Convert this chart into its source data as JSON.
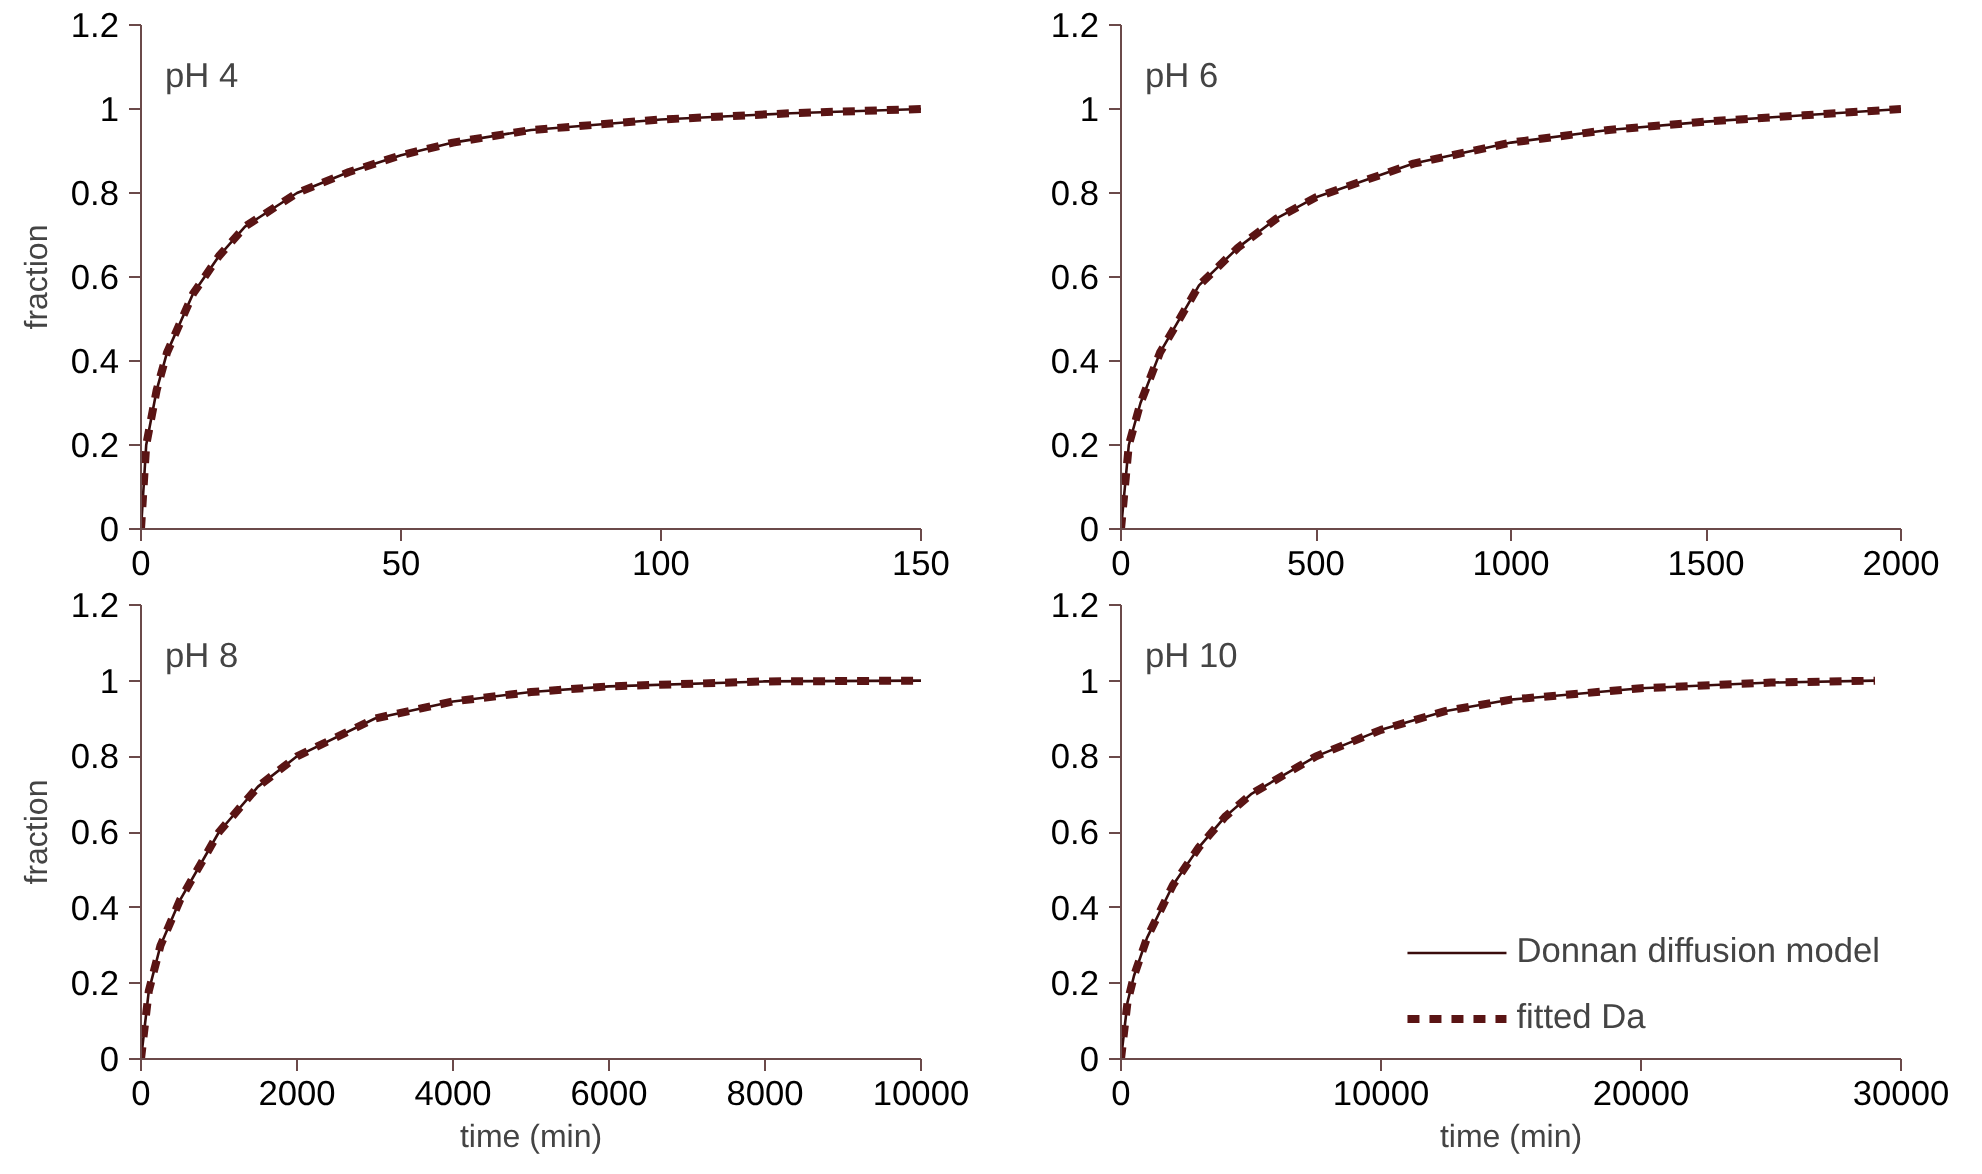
{
  "chart_data": [
    {
      "type": "line",
      "annotations": [
        "pH 4"
      ],
      "ylabel": "fraction",
      "xlim": [
        0,
        150
      ],
      "xticks": [
        0,
        50,
        100,
        150
      ],
      "ylim": [
        0,
        1.2
      ],
      "yticks": [
        0,
        0.2,
        0.4,
        0.6,
        0.8,
        1,
        1.2
      ],
      "grid": false,
      "legend": false,
      "x": [
        0,
        1,
        3,
        5,
        10,
        15,
        20,
        30,
        40,
        50,
        60,
        75,
        100,
        125,
        150
      ],
      "series": [
        {
          "color": "#3a0c0c",
          "line_style": "solid",
          "values": [
            0,
            0.2,
            0.33,
            0.42,
            0.56,
            0.65,
            0.72,
            0.8,
            0.85,
            0.89,
            0.92,
            0.95,
            0.975,
            0.99,
            1.0
          ]
        },
        {
          "color": "#5a1414",
          "line_style": "dashed",
          "values": [
            0,
            0.2,
            0.33,
            0.42,
            0.56,
            0.65,
            0.72,
            0.8,
            0.85,
            0.89,
            0.92,
            0.95,
            0.975,
            0.99,
            1.0
          ]
        }
      ]
    },
    {
      "type": "line",
      "annotations": [
        "pH 6"
      ],
      "xlim": [
        0,
        2000
      ],
      "xticks": [
        0,
        500,
        1000,
        1500,
        2000
      ],
      "ylim": [
        0,
        1.2
      ],
      "yticks": [
        0,
        0.2,
        0.4,
        0.6,
        0.8,
        1,
        1.2
      ],
      "grid": false,
      "legend": false,
      "x": [
        0,
        20,
        50,
        100,
        200,
        300,
        400,
        500,
        750,
        1000,
        1250,
        1500,
        1750,
        2000
      ],
      "series": [
        {
          "color": "#3a0c0c",
          "line_style": "solid",
          "values": [
            0,
            0.2,
            0.3,
            0.42,
            0.58,
            0.67,
            0.74,
            0.79,
            0.87,
            0.92,
            0.95,
            0.97,
            0.985,
            1.0
          ]
        },
        {
          "color": "#5a1414",
          "line_style": "dashed",
          "values": [
            0,
            0.2,
            0.3,
            0.42,
            0.58,
            0.67,
            0.74,
            0.79,
            0.87,
            0.92,
            0.95,
            0.97,
            0.985,
            1.0
          ]
        }
      ]
    },
    {
      "type": "line",
      "annotations": [
        "pH 8"
      ],
      "ylabel": "fraction",
      "xlabel": "time (min)",
      "xlim": [
        0,
        10000
      ],
      "xticks": [
        0,
        2000,
        4000,
        6000,
        8000,
        10000
      ],
      "ylim": [
        0,
        1.2
      ],
      "yticks": [
        0,
        0.2,
        0.4,
        0.6,
        0.8,
        1,
        1.2
      ],
      "grid": false,
      "legend": false,
      "x": [
        0,
        100,
        250,
        500,
        1000,
        1500,
        2000,
        3000,
        4000,
        5000,
        6000,
        8000,
        10000
      ],
      "series": [
        {
          "color": "#3a0c0c",
          "line_style": "solid",
          "values": [
            0,
            0.18,
            0.3,
            0.42,
            0.6,
            0.72,
            0.8,
            0.9,
            0.945,
            0.97,
            0.985,
            0.998,
            1.0
          ]
        },
        {
          "color": "#5a1414",
          "line_style": "dashed",
          "values": [
            0,
            0.18,
            0.3,
            0.42,
            0.6,
            0.72,
            0.8,
            0.9,
            0.945,
            0.97,
            0.985,
            0.998,
            1.0
          ]
        }
      ]
    },
    {
      "type": "line",
      "annotations": [
        "pH 10"
      ],
      "xlabel": "time (min)",
      "xlim": [
        0,
        30000
      ],
      "xticks": [
        0,
        10000,
        20000,
        30000
      ],
      "ylim": [
        0,
        1.2
      ],
      "yticks": [
        0,
        0.2,
        0.4,
        0.6,
        0.8,
        1,
        1.2
      ],
      "grid": false,
      "legend": "bottom right",
      "x": [
        0,
        250,
        500,
        1000,
        2000,
        3000,
        4000,
        5000,
        7500,
        10000,
        12500,
        15000,
        20000,
        25000,
        29000
      ],
      "series": [
        {
          "name": "Donnan diffusion model",
          "color": "#3a0c0c",
          "line_style": "solid",
          "values": [
            0,
            0.15,
            0.22,
            0.32,
            0.46,
            0.56,
            0.64,
            0.7,
            0.8,
            0.87,
            0.92,
            0.95,
            0.98,
            0.995,
            1.0
          ]
        },
        {
          "name": "fitted Da",
          "color": "#5a1414",
          "line_style": "dashed",
          "values": [
            0,
            0.15,
            0.22,
            0.32,
            0.46,
            0.56,
            0.64,
            0.7,
            0.8,
            0.87,
            0.92,
            0.95,
            0.98,
            0.995,
            1.0
          ]
        }
      ]
    }
  ]
}
